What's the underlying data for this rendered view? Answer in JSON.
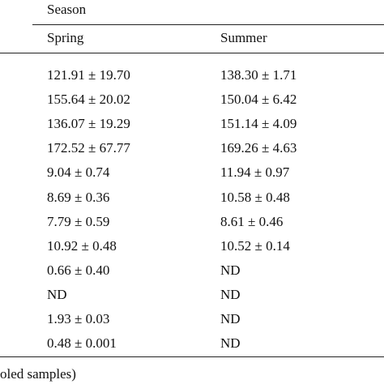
{
  "table": {
    "group_header": "Season",
    "columns": [
      "Spring",
      "Summer"
    ],
    "rows": [
      [
        "121.91 ± 19.70",
        "138.30 ± 1.71"
      ],
      [
        "155.64 ± 20.02",
        "150.04 ± 6.42"
      ],
      [
        "136.07 ± 19.29",
        "151.14 ± 4.09"
      ],
      [
        "172.52 ± 67.77",
        "169.26 ± 4.63"
      ],
      [
        "9.04 ± 0.74",
        "11.94 ± 0.97"
      ],
      [
        "8.69 ± 0.36",
        "10.58 ± 0.48"
      ],
      [
        "7.79 ± 0.59",
        "8.61 ± 0.46"
      ],
      [
        "10.92 ± 0.48",
        "10.52 ± 0.14"
      ],
      [
        "0.66 ± 0.40",
        "ND"
      ],
      [
        "ND",
        "ND"
      ],
      [
        "1.93 ± 0.03",
        "ND"
      ],
      [
        "0.48 ± 0.001",
        "ND"
      ]
    ],
    "footnote": "oled samples)"
  }
}
